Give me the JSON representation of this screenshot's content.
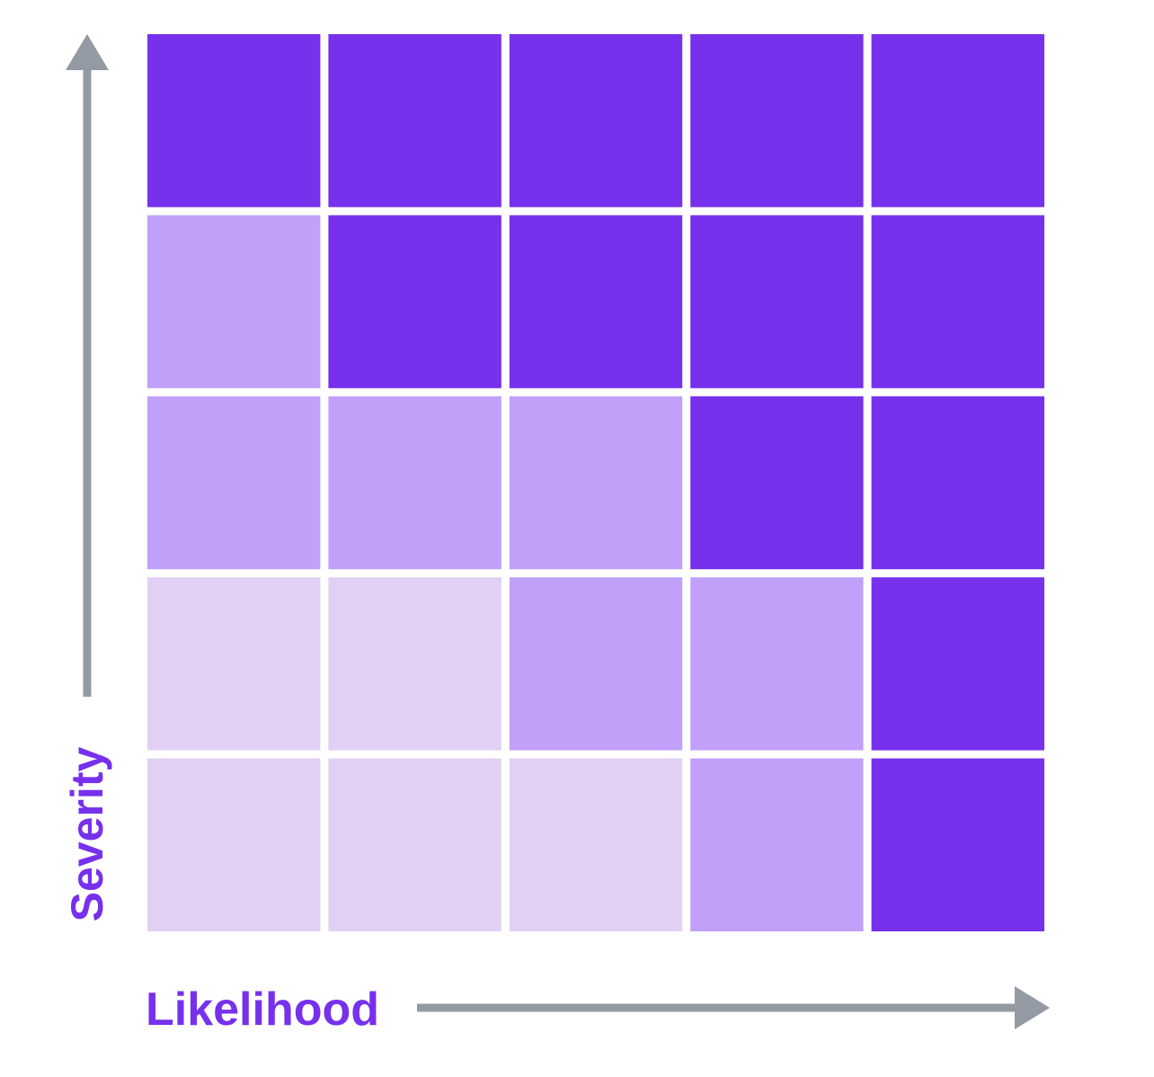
{
  "chart_data": {
    "type": "heatmap",
    "xlabel": "Likelihood",
    "ylabel": "Severity",
    "rows": 5,
    "cols": 5,
    "levels": [
      1,
      2,
      3
    ],
    "level_colors": {
      "1": "#e2d0f4",
      "2": "#c0a0f8",
      "3": "#7730ec"
    },
    "grid_top_to_bottom": [
      [
        3,
        3,
        3,
        3,
        3
      ],
      [
        2,
        3,
        3,
        3,
        3
      ],
      [
        2,
        2,
        2,
        3,
        3
      ],
      [
        1,
        1,
        2,
        2,
        3
      ],
      [
        1,
        1,
        1,
        2,
        3
      ]
    ]
  },
  "colors": {
    "label": "#7730ec",
    "arrow": "#939aa3"
  }
}
